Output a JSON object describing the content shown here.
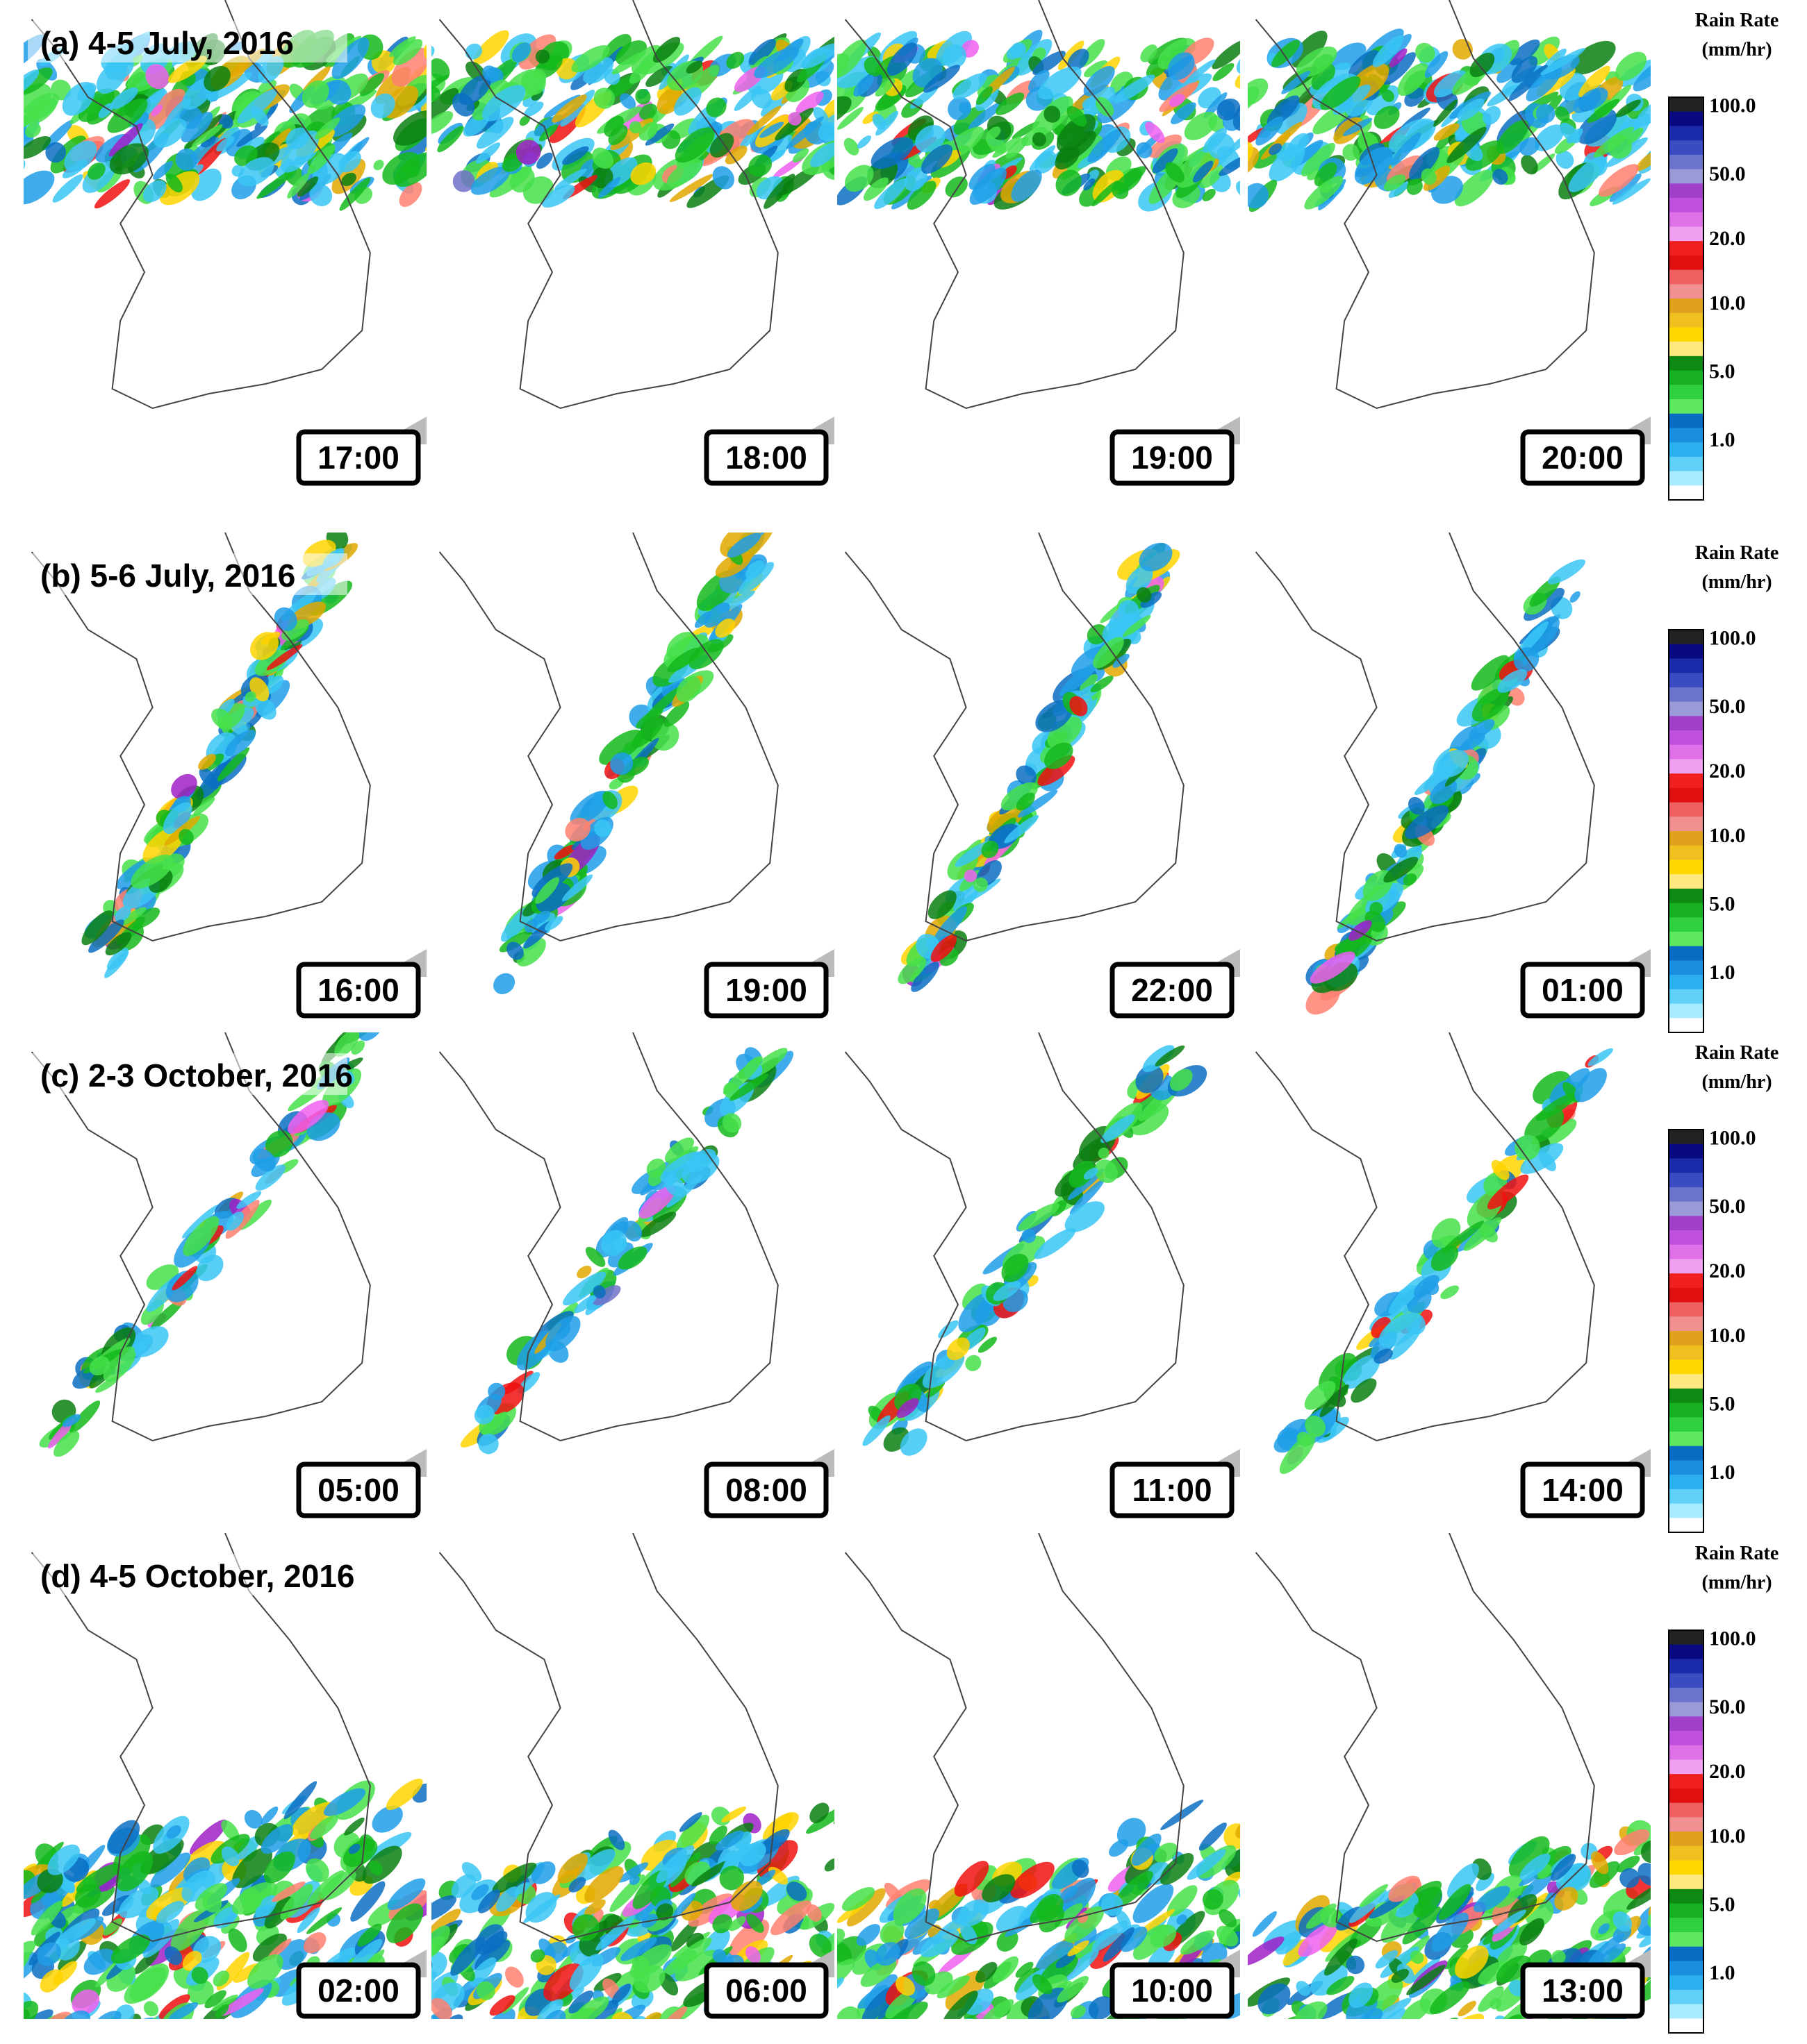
{
  "rows": [
    {
      "label": "(a) 4-5 July, 2016",
      "times": [
        "17:00",
        "18:00",
        "19:00",
        "20:00"
      ],
      "colorbar": {
        "title": "Rain Rate",
        "unit": "(mm/hr)",
        "ticks": [
          "100.0",
          "50.0",
          "20.0",
          "10.0",
          "5.0",
          "1.0"
        ]
      }
    },
    {
      "label": "(b) 5-6 July, 2016",
      "times": [
        "16:00",
        "19:00",
        "22:00",
        "01:00"
      ],
      "colorbar": {
        "title": "Rain Rate",
        "unit": "(mm/hr)",
        "ticks": [
          "100.0",
          "50.0",
          "20.0",
          "10.0",
          "5.0",
          "1.0"
        ]
      }
    },
    {
      "label": "(c) 2-3 October, 2016",
      "times": [
        "05:00",
        "08:00",
        "11:00",
        "14:00"
      ],
      "colorbar": {
        "title": "Rain Rate",
        "unit": "(mm/hr)",
        "ticks": [
          "100.0",
          "50.0",
          "20.0",
          "10.0",
          "5.0",
          "1.0"
        ]
      }
    },
    {
      "label": "(d) 4-5 October, 2016",
      "times": [
        "02:00",
        "06:00",
        "10:00",
        "13:00"
      ],
      "colorbar": {
        "title": "Rain Rate",
        "unit": "(mm/hr)",
        "ticks": [
          "100.0",
          "50.0",
          "20.0",
          "10.0",
          "5.0",
          "1.0"
        ]
      }
    }
  ]
}
